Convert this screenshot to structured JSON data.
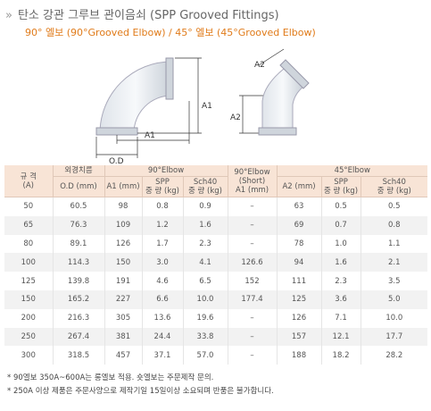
{
  "header": {
    "marker": "»",
    "title": "탄소 강관 그루브 관이음쇠 (SPP Grooved Fittings)",
    "subtitle": "90° 엘보 (90°Grooved Elbow) / 45° 엘보 (45°Grooved Elbow)"
  },
  "diagram": {
    "elbow90": {
      "a1_vertical": "A1",
      "a1_horizontal": "A1",
      "od": "O.D"
    },
    "elbow45": {
      "a2_top": "A2",
      "a2_side": "A2"
    }
  },
  "table": {
    "headers": {
      "size": "규 격",
      "size_unit": "(A)",
      "od_group": "외경치름",
      "od": "O.D (mm)",
      "e90": "90°Elbow",
      "e90_a1": "A1 (mm)",
      "e90_spp": "SPP",
      "e90_spp_unit": "중 량 (kg)",
      "e90_sch": "Sch40",
      "e90_sch_unit": "중 량 (kg)",
      "short": "90°Elbow",
      "short_sub": "(Short)",
      "short_a1": "A1 (mm)",
      "e45": "45°Elbow",
      "e45_a2": "A2 (mm)",
      "e45_spp": "SPP",
      "e45_spp_unit": "중 량 (kg)",
      "e45_sch": "Sch40",
      "e45_sch_unit": "중 량 (kg)"
    },
    "rows": [
      [
        "50",
        "60.5",
        "98",
        "0.8",
        "0.9",
        "–",
        "63",
        "0.5",
        "0.5"
      ],
      [
        "65",
        "76.3",
        "109",
        "1.2",
        "1.6",
        "–",
        "69",
        "0.7",
        "0.8"
      ],
      [
        "80",
        "89.1",
        "126",
        "1.7",
        "2.3",
        "–",
        "78",
        "1.0",
        "1.1"
      ],
      [
        "100",
        "114.3",
        "150",
        "3.0",
        "4.1",
        "126.6",
        "94",
        "1.6",
        "2.1"
      ],
      [
        "125",
        "139.8",
        "191",
        "4.6",
        "6.5",
        "152",
        "111",
        "2.3",
        "3.5"
      ],
      [
        "150",
        "165.2",
        "227",
        "6.6",
        "10.0",
        "177.4",
        "125",
        "3.6",
        "5.0"
      ],
      [
        "200",
        "216.3",
        "305",
        "13.6",
        "19.6",
        "–",
        "126",
        "7.1",
        "10.0"
      ],
      [
        "250",
        "267.4",
        "381",
        "24.4",
        "33.8",
        "–",
        "157",
        "12.1",
        "17.7"
      ],
      [
        "300",
        "318.5",
        "457",
        "37.1",
        "57.0",
        "–",
        "188",
        "18.2",
        "28.2"
      ]
    ]
  },
  "notes": [
    "* 90엘보 350A~600A는 롱엘보 적용. 숏엘보는 주문제작 문의.",
    "* 250A 이상 제품은 주문사양으로 제작기일 15일이상 소요되며 반품은 불가합니다."
  ]
}
